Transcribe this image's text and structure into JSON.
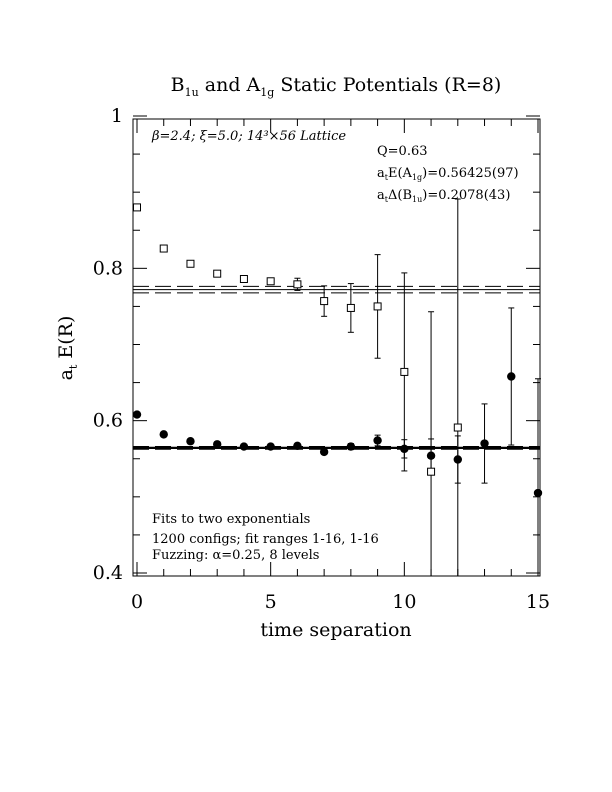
{
  "chart_data": {
    "type": "scatter",
    "title_main_1": "B",
    "title_sub_1": "1u",
    "title_mid": " and A",
    "title_sub_2": "1g",
    "title_end": " Static Potentials (R=8)",
    "xlabel": "time separation",
    "ylabel_main": "a",
    "ylabel_sub": "t",
    "ylabel_rest": " E(R)",
    "xlim": [
      0,
      15
    ],
    "ylim": [
      0.4,
      1.0
    ],
    "xticks": [
      {
        "value": 0,
        "label": "0"
      },
      {
        "value": 5,
        "label": "5"
      },
      {
        "value": 10,
        "label": "10"
      },
      {
        "value": 15,
        "label": "15"
      }
    ],
    "yticks": [
      {
        "value": 0.4,
        "label": "0.4"
      },
      {
        "value": 0.6,
        "label": "0.6"
      },
      {
        "value": 0.8,
        "label": "0.8"
      },
      {
        "value": 1.0,
        "label": "1"
      }
    ],
    "annotations": {
      "lattice": "β=2.4; ξ=5.0; 14³×56 Lattice",
      "q": "Q=0.63",
      "energy_prefix": "a",
      "energy_prefix_sub": "t",
      "energy_mid": "E(A",
      "energy_sub": "1g",
      "energy_value": ")=0.56425(97)",
      "delta_prefix": "a",
      "delta_prefix_sub": "t",
      "delta_mid": "Δ(B",
      "delta_sub": "1u",
      "delta_value": ")=0.2078(43)",
      "fits": "Fits to two exponentials",
      "configs": "1200 configs; fit ranges 1-16, 1-16",
      "fuzzing": "Fuzzing: α=0.25, 8 levels"
    },
    "series": [
      {
        "marker": "filled-circle",
        "points": [
          {
            "x": 0,
            "y": 0.608,
            "err": 0.0
          },
          {
            "x": 1,
            "y": 0.582,
            "err": 0.0
          },
          {
            "x": 2,
            "y": 0.573,
            "err": 0.0
          },
          {
            "x": 3,
            "y": 0.569,
            "err": 0.0
          },
          {
            "x": 4,
            "y": 0.566,
            "err": 0.0
          },
          {
            "x": 5,
            "y": 0.566,
            "err": 0.0
          },
          {
            "x": 6,
            "y": 0.567,
            "err": 0.002
          },
          {
            "x": 7,
            "y": 0.559,
            "err": 0.003
          },
          {
            "x": 8,
            "y": 0.566,
            "err": 0.004
          },
          {
            "x": 9,
            "y": 0.574,
            "err": 0.007
          },
          {
            "x": 10,
            "y": 0.563,
            "err": 0.012
          },
          {
            "x": 11,
            "y": 0.554,
            "err": 0.022
          },
          {
            "x": 12,
            "y": 0.549,
            "err": 0.031
          },
          {
            "x": 13,
            "y": 0.57,
            "err": 0.052
          },
          {
            "x": 14,
            "y": 0.658,
            "err": 0.09
          },
          {
            "x": 15,
            "y": 0.505,
            "err": 0.15
          }
        ]
      },
      {
        "marker": "open-square",
        "points": [
          {
            "x": 0,
            "y": 0.88,
            "err": 0.0
          },
          {
            "x": 1,
            "y": 0.826,
            "err": 0.0
          },
          {
            "x": 2,
            "y": 0.806,
            "err": 0.0
          },
          {
            "x": 3,
            "y": 0.793,
            "err": 0.0
          },
          {
            "x": 4,
            "y": 0.786,
            "err": 0.0
          },
          {
            "x": 5,
            "y": 0.783,
            "err": 0.002
          },
          {
            "x": 6,
            "y": 0.779,
            "err": 0.008
          },
          {
            "x": 7,
            "y": 0.757,
            "err": 0.02
          },
          {
            "x": 8,
            "y": 0.748,
            "err": 0.032
          },
          {
            "x": 9,
            "y": 0.75,
            "err": 0.068
          },
          {
            "x": 10,
            "y": 0.664,
            "err": 0.13
          },
          {
            "x": 11,
            "y": 0.533,
            "err": 0.21
          },
          {
            "x": 12,
            "y": 0.591,
            "err": 0.3
          }
        ]
      }
    ],
    "fit_lines": [
      {
        "y": 0.56425,
        "err": 0.00097,
        "style": "dashed-band",
        "width": "thick"
      },
      {
        "y": 0.77205,
        "err": 0.0043,
        "style": "dashed-band",
        "width": "thin"
      }
    ]
  }
}
